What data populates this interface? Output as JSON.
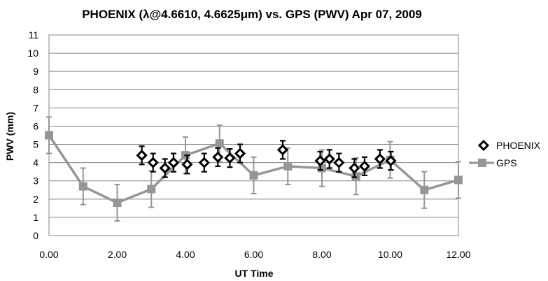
{
  "chart_data": {
    "type": "scatter",
    "title": "PHOENIX (λ@4.6610, 4.6625μm) vs. GPS (PWV) Apr 07, 2009",
    "xlabel": "UT Time",
    "ylabel": "PWV (mm)",
    "xlim": [
      0,
      12
    ],
    "ylim": [
      0,
      11
    ],
    "x_ticks": [
      "0.00",
      "2.00",
      "4.00",
      "6.00",
      "8.00",
      "10.00",
      "12.00"
    ],
    "y_ticks": [
      "0",
      "1",
      "2",
      "3",
      "4",
      "5",
      "6",
      "7",
      "8",
      "9",
      "10",
      "11"
    ],
    "grid": true,
    "legend": "right",
    "series": [
      {
        "name": "PHOENIX",
        "marker": "diamond-open",
        "color": "#000000",
        "line": false,
        "x": [
          2.72,
          3.05,
          3.4,
          3.65,
          4.05,
          4.55,
          4.95,
          5.3,
          5.6,
          6.85,
          7.95,
          8.22,
          8.5,
          8.95,
          9.25,
          9.7,
          10.02
        ],
        "y": [
          4.4,
          4.0,
          3.7,
          4.0,
          3.9,
          4.0,
          4.3,
          4.25,
          4.5,
          4.7,
          4.1,
          4.2,
          4.0,
          3.7,
          3.8,
          4.2,
          4.1
        ],
        "error": 0.5
      },
      {
        "name": "GPS",
        "marker": "square",
        "color": "#969696",
        "line": true,
        "x": [
          0,
          1,
          2,
          3,
          4,
          5,
          6,
          7,
          8,
          9,
          10,
          11,
          12
        ],
        "y": [
          5.5,
          2.7,
          1.8,
          2.55,
          4.4,
          5.05,
          3.3,
          3.8,
          3.7,
          3.25,
          4.15,
          2.5,
          3.05
        ],
        "error": 1.0
      }
    ]
  }
}
